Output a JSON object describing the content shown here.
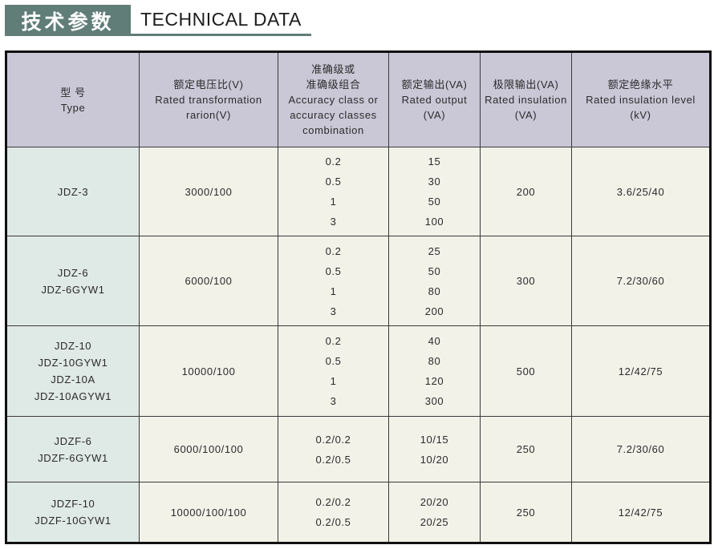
{
  "title": {
    "zh": "技术参数",
    "en": "TECHNICAL DATA"
  },
  "colors": {
    "title-box": "#607d78",
    "underline": "#607d78",
    "header-bg": "#cac8d7",
    "type-col-bg": "#dfe9e5",
    "cell-bg": "#f2f2e9",
    "border": "#2b2b2b",
    "text": "#2b2b2b"
  },
  "table": {
    "columns": [
      {
        "lines": [
          "型  号",
          "Type"
        ]
      },
      {
        "lines": [
          "额定电压比(V)",
          "Rated transformation",
          "rarion(V)"
        ]
      },
      {
        "lines": [
          "准确级或",
          "准确级组合",
          "Accuracy class or",
          "accuracy classes",
          "combination"
        ]
      },
      {
        "lines": [
          "额定输出(VA)",
          "Rated output",
          "(VA)"
        ]
      },
      {
        "lines": [
          "极限输出(VA)",
          "Rated insulation",
          "(VA)"
        ]
      },
      {
        "lines": [
          "额定绝缘水平",
          "Rated insulation level",
          "(kV)"
        ]
      }
    ],
    "rows": [
      {
        "types": [
          "JDZ-3"
        ],
        "ratio": "3000/100",
        "accuracy": [
          "0.2",
          "0.5",
          "1",
          "3"
        ],
        "output": [
          "15",
          "30",
          "50",
          "100"
        ],
        "limit": "200",
        "level": "3.6/25/40"
      },
      {
        "types": [
          "JDZ-6",
          "JDZ-6GYW1"
        ],
        "ratio": "6000/100",
        "accuracy": [
          "0.2",
          "0.5",
          "1",
          "3"
        ],
        "output": [
          "25",
          "50",
          "80",
          "200"
        ],
        "limit": "300",
        "level": "7.2/30/60"
      },
      {
        "types": [
          "JDZ-10",
          "JDZ-10GYW1",
          "JDZ-10A",
          "JDZ-10AGYW1"
        ],
        "ratio": "10000/100",
        "accuracy": [
          "0.2",
          "0.5",
          "1",
          "3"
        ],
        "output": [
          "40",
          "80",
          "120",
          "300"
        ],
        "limit": "500",
        "level": "12/42/75"
      },
      {
        "types": [
          "JDZF-6",
          "JDZF-6GYW1"
        ],
        "ratio": "6000/100/100",
        "accuracy": [
          "0.2/0.2",
          "0.2/0.5"
        ],
        "output": [
          "10/15",
          "10/20"
        ],
        "limit": "250",
        "level": "7.2/30/60"
      },
      {
        "types": [
          "JDZF-10",
          "JDZF-10GYW1"
        ],
        "ratio": "10000/100/100",
        "accuracy": [
          "0.2/0.2",
          "0.2/0.5"
        ],
        "output": [
          "20/20",
          "20/25"
        ],
        "limit": "250",
        "level": "12/42/75"
      }
    ]
  }
}
